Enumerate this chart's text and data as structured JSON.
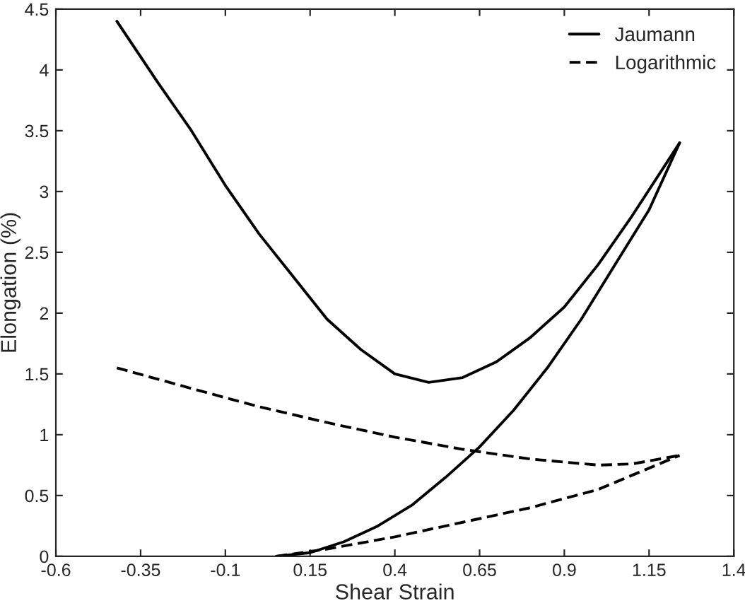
{
  "chart_data": {
    "type": "line",
    "xlabel": "Shear Strain",
    "ylabel": "Elongation (%)",
    "xlim": [
      -0.6,
      1.4
    ],
    "xticks": [
      -0.6,
      -0.35,
      -0.1,
      0.15,
      0.4,
      0.65,
      0.9,
      1.15,
      1.4
    ],
    "ylim": [
      0,
      4.5
    ],
    "yticks": [
      0,
      0.5,
      1,
      1.5,
      2,
      2.5,
      3,
      3.5,
      4,
      4.5
    ],
    "grid": false,
    "legend": "top right",
    "marker": "none",
    "series": [
      {
        "name": "Jaumann",
        "color": "#000000",
        "line_style": "solid",
        "x": [
          -0.42,
          -0.3,
          -0.2,
          -0.1,
          0.0,
          0.1,
          0.2,
          0.3,
          0.4,
          0.5,
          0.6,
          0.7,
          0.8,
          0.9,
          1.0,
          1.1,
          1.24
        ],
        "values": [
          4.4,
          3.9,
          3.5,
          3.05,
          2.65,
          2.3,
          1.95,
          1.7,
          1.5,
          1.43,
          1.47,
          1.6,
          1.8,
          2.05,
          2.4,
          2.8,
          3.4
        ]
      },
      {
        "color": "#000000",
        "line_style": "solid",
        "x": [
          0.05,
          0.15,
          0.25,
          0.35,
          0.45,
          0.55,
          0.65,
          0.75,
          0.85,
          0.95,
          1.05,
          1.15,
          1.24
        ],
        "values": [
          0,
          0.03,
          0.12,
          0.25,
          0.42,
          0.65,
          0.9,
          1.2,
          1.55,
          1.95,
          2.4,
          2.85,
          3.4
        ]
      },
      {
        "name": "Logarithmic",
        "color": "#000000",
        "line_style": "dashed",
        "x": [
          -0.42,
          -0.2,
          0.0,
          0.2,
          0.4,
          0.6,
          0.8,
          1.0,
          1.1,
          1.24
        ],
        "values": [
          1.55,
          1.38,
          1.23,
          1.1,
          0.98,
          0.88,
          0.8,
          0.75,
          0.76,
          0.83
        ]
      },
      {
        "color": "#000000",
        "line_style": "dashed",
        "x": [
          0.05,
          0.2,
          0.4,
          0.6,
          0.8,
          1.0,
          1.24
        ],
        "values": [
          0,
          0.06,
          0.16,
          0.28,
          0.4,
          0.55,
          0.83
        ]
      }
    ]
  }
}
